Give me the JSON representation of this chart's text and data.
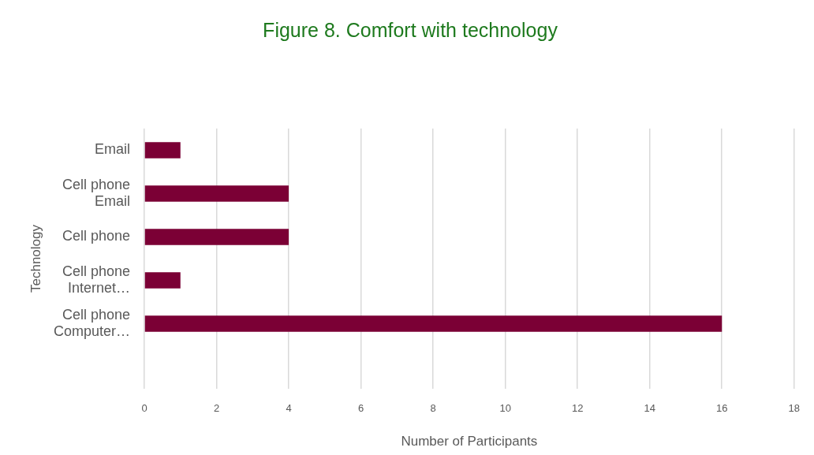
{
  "chart_data": {
    "type": "bar",
    "orientation": "horizontal",
    "title": "Figure 8. Comfort with technology",
    "xlabel": "Number of Participants",
    "ylabel": "Technology",
    "categories": [
      "Email",
      "Cell phone Email",
      "Cell phone",
      "Cell phone Internet…",
      "Cell phone Computer…",
      null
    ],
    "values": [
      1,
      4,
      4,
      1,
      16,
      null
    ],
    "color": "#7b0035",
    "xlim": [
      0,
      18
    ],
    "xticks": [
      0,
      2,
      4,
      6,
      8,
      10,
      12,
      14,
      16,
      18
    ],
    "grid": "x"
  }
}
